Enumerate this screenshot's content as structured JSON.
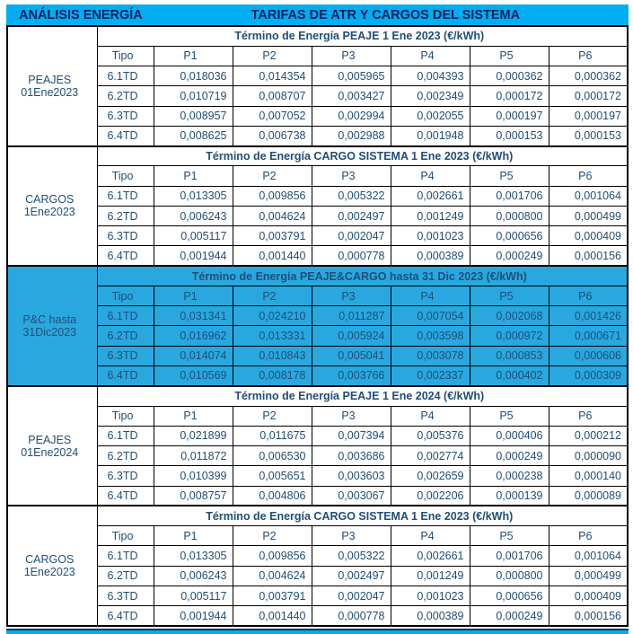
{
  "header": {
    "left_title": "ANÁLISIS ENERGÍA",
    "main_title": "TARIFAS DE ATR Y CARGOS DEL SISTEMA"
  },
  "columns": [
    "Tipo",
    "P1",
    "P2",
    "P3",
    "P4",
    "P5",
    "P6"
  ],
  "colors": {
    "header_bg": "#00AEEF",
    "highlight_bg": "#29A8DF",
    "data_text": "#1F4E79",
    "title_text": "#002060",
    "border": "#000000"
  },
  "sections": [
    {
      "label_lines": [
        "PEAJES",
        "01Ene2023"
      ],
      "title": "Término de Energía PEAJE 1 Ene 2023 (€/kWh)",
      "highlighted": false,
      "rows": [
        {
          "tipo": "6.1TD",
          "values": [
            "0,018036",
            "0,014354",
            "0,005965",
            "0,004393",
            "0,000362",
            "0,000362"
          ]
        },
        {
          "tipo": "6.2TD",
          "values": [
            "0,010719",
            "0,008707",
            "0,003427",
            "0,002349",
            "0,000172",
            "0,000172"
          ]
        },
        {
          "tipo": "6.3TD",
          "values": [
            "0,008957",
            "0,007052",
            "0,002994",
            "0,002055",
            "0,000197",
            "0,000197"
          ]
        },
        {
          "tipo": "6.4TD",
          "values": [
            "0,008625",
            "0,006738",
            "0,002988",
            "0,001948",
            "0,000153",
            "0,000153"
          ]
        }
      ]
    },
    {
      "label_lines": [
        "CARGOS",
        "1Ene2023"
      ],
      "title": "Término de Energía CARGO SISTEMA 1 Ene 2023 (€/kWh)",
      "highlighted": false,
      "rows": [
        {
          "tipo": "6.1TD",
          "values": [
            "0,013305",
            "0,009856",
            "0,005322",
            "0,002661",
            "0,001706",
            "0,001064"
          ]
        },
        {
          "tipo": "6.2TD",
          "values": [
            "0,006243",
            "0,004624",
            "0,002497",
            "0,001249",
            "0,000800",
            "0,000499"
          ]
        },
        {
          "tipo": "6.3TD",
          "values": [
            "0,005117",
            "0,003791",
            "0,002047",
            "0,001023",
            "0,000656",
            "0,000409"
          ]
        },
        {
          "tipo": "6.4TD",
          "values": [
            "0,001944",
            "0,001440",
            "0,000778",
            "0,000389",
            "0,000249",
            "0,000156"
          ]
        }
      ]
    },
    {
      "label_lines": [
        "P&C hasta",
        "31Dic2023"
      ],
      "title": "Término de Energía PEAJE&CARGO hasta 31 Dic 2023 (€/kWh)",
      "highlighted": true,
      "rows": [
        {
          "tipo": "6.1TD",
          "values": [
            "0,031341",
            "0,024210",
            "0,011287",
            "0,007054",
            "0,002068",
            "0,001426"
          ]
        },
        {
          "tipo": "6.2TD",
          "values": [
            "0,016962",
            "0,013331",
            "0,005924",
            "0,003598",
            "0,000972",
            "0,000671"
          ]
        },
        {
          "tipo": "6.3TD",
          "values": [
            "0,014074",
            "0,010843",
            "0,005041",
            "0,003078",
            "0,000853",
            "0,000606"
          ]
        },
        {
          "tipo": "6.4TD",
          "values": [
            "0,010569",
            "0,008178",
            "0,003766",
            "0,002337",
            "0,000402",
            "0,000309"
          ]
        }
      ]
    },
    {
      "label_lines": [
        "PEAJES",
        "01Ene2024"
      ],
      "title": "Término de Energía PEAJE 1 Ene 2024 (€/kWh)",
      "highlighted": false,
      "rows": [
        {
          "tipo": "6.1TD",
          "values": [
            "0,021899",
            "0,011675",
            "0,007394",
            "0,005376",
            "0,000406",
            "0,000212"
          ]
        },
        {
          "tipo": "6.2TD",
          "values": [
            "0,011872",
            "0,006530",
            "0,003686",
            "0,002774",
            "0,000249",
            "0,000090"
          ]
        },
        {
          "tipo": "6.3TD",
          "values": [
            "0,010399",
            "0,005651",
            "0,003603",
            "0,002659",
            "0,000238",
            "0,000140"
          ]
        },
        {
          "tipo": "6.4TD",
          "values": [
            "0,008757",
            "0,004806",
            "0,003067",
            "0,002206",
            "0,000139",
            "0,000089"
          ]
        }
      ]
    },
    {
      "label_lines": [
        "CARGOS",
        "1Ene2023"
      ],
      "title": "Término de Energía CARGO SISTEMA 1 Ene 2023 (€/kWh)",
      "highlighted": false,
      "rows": [
        {
          "tipo": "6.1TD",
          "values": [
            "0,013305",
            "0,009856",
            "0,005322",
            "0,002661",
            "0,001706",
            "0,001064"
          ]
        },
        {
          "tipo": "6.2TD",
          "values": [
            "0,006243",
            "0,004624",
            "0,002497",
            "0,001249",
            "0,000800",
            "0,000499"
          ]
        },
        {
          "tipo": "6.3TD",
          "values": [
            "0,005117",
            "0,003791",
            "0,002047",
            "0,001023",
            "0,000656",
            "0,000409"
          ]
        },
        {
          "tipo": "6.4TD",
          "values": [
            "0,001944",
            "0,001440",
            "0,000778",
            "0,000389",
            "0,000249",
            "0,000156"
          ]
        }
      ]
    }
  ]
}
